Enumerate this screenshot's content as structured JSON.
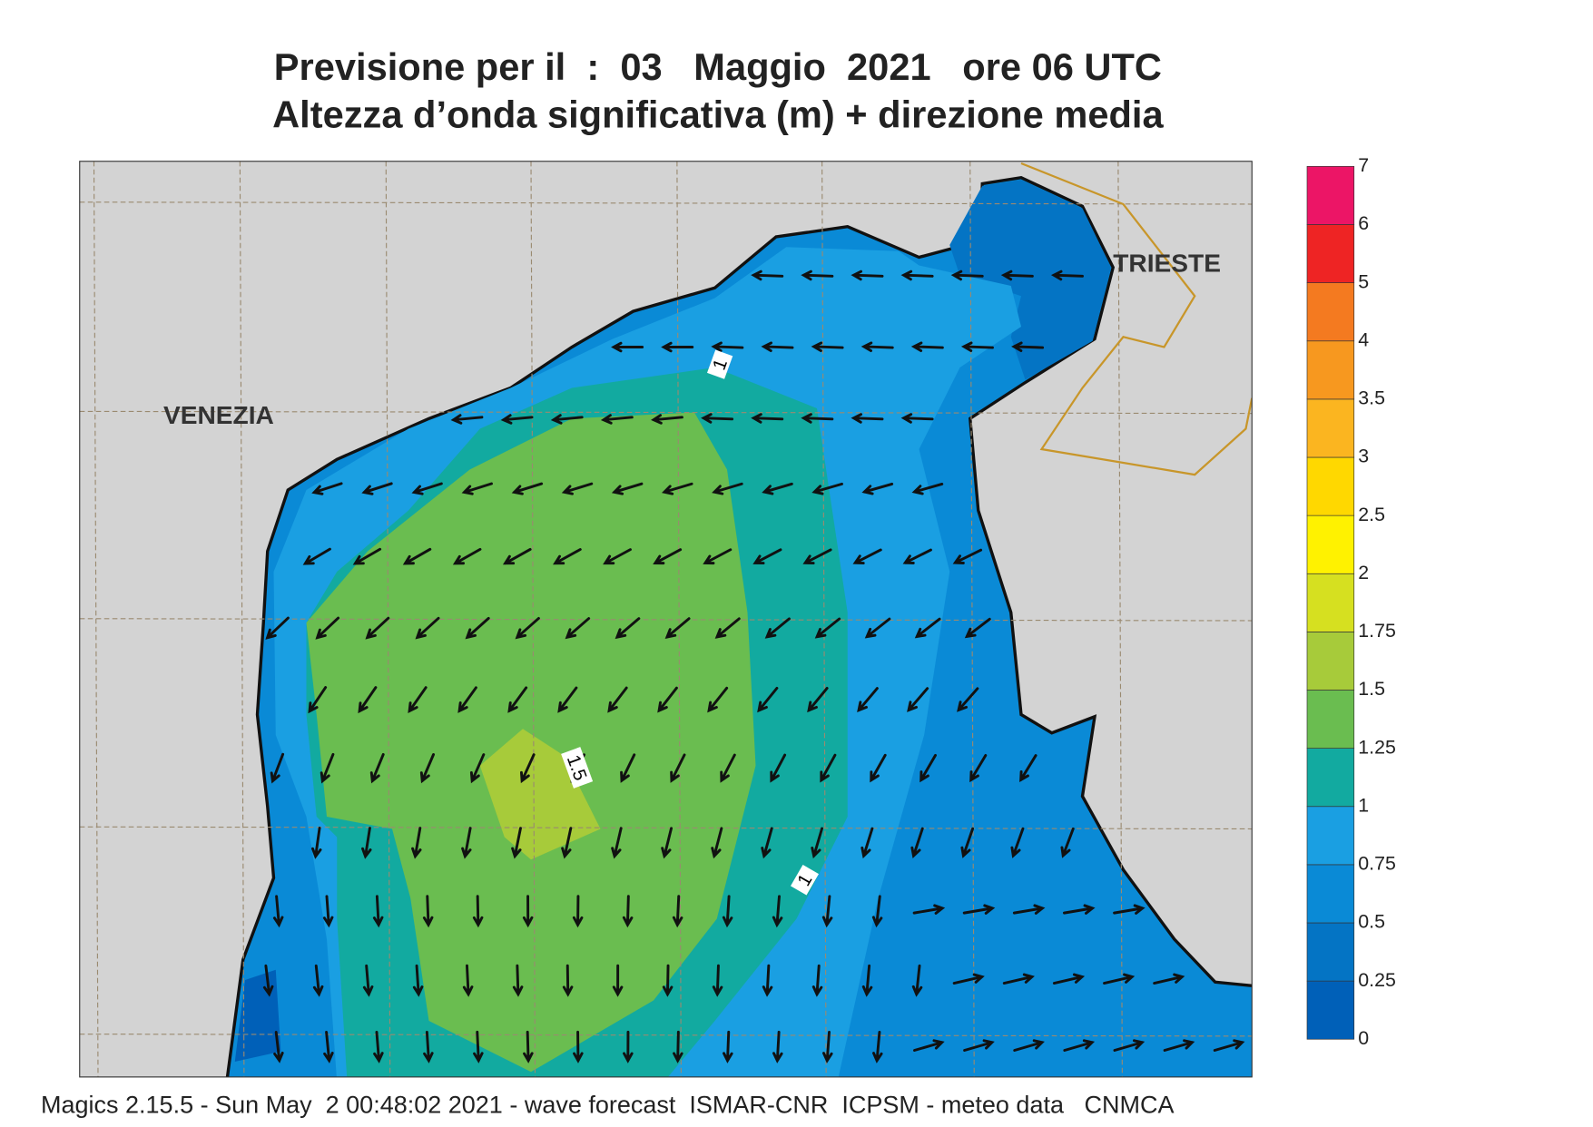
{
  "header": {
    "title": "Previsione per il  :  03   Maggio  2021   ore 06 UTC",
    "subtitle": "Altezza d’onda significativa (m) + direzione media"
  },
  "map": {
    "cities": [
      "VENEZIA",
      "TRIESTE"
    ],
    "contour_labels": [
      "1",
      "1.5",
      "1"
    ]
  },
  "legend": {
    "levels": [
      0,
      0.25,
      0.5,
      0.75,
      1,
      1.25,
      1.5,
      1.75,
      2,
      2.5,
      3,
      3.5,
      4,
      5,
      6,
      7
    ],
    "colors": [
      "#0060b8",
      "#0474c4",
      "#0a8ad6",
      "#1a9fe2",
      "#12aaa0",
      "#6abd50",
      "#a7cb3a",
      "#d6e020",
      "#fff200",
      "#ffd800",
      "#fbb520",
      "#f7981f",
      "#f47a20",
      "#ee2424",
      "#ec1566"
    ]
  },
  "footer": "Magics 2.15.5 - Sun May  2 00:48:02 2021 - wave forecast  ISMAR-CNR  ICPSM - meteo data   CNMCA"
}
